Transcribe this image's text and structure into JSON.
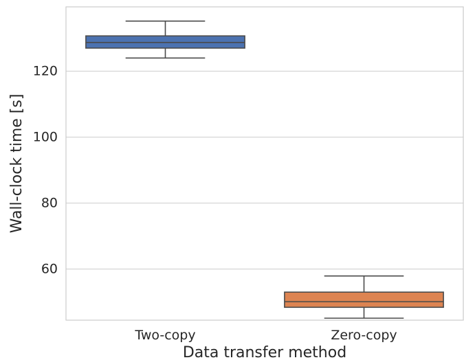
{
  "chart_data": {
    "type": "box",
    "title": "",
    "xlabel": "Data transfer method",
    "ylabel": "Wall-clock time [s]",
    "categories": [
      "Two-copy",
      "Zero-copy"
    ],
    "ylim": [
      44.5,
      139.5
    ],
    "yticks": [
      60,
      80,
      100,
      120
    ],
    "grid": true,
    "series": [
      {
        "category": "Two-copy",
        "whisker_low": 124,
        "q1": 127,
        "median": 128.7,
        "q3": 130.7,
        "whisker_high": 135.2,
        "color": "#4c72b0"
      },
      {
        "category": "Zero-copy",
        "whisker_low": 45.1,
        "q1": 48.4,
        "median": 50.1,
        "q3": 53.0,
        "whisker_high": 57.9,
        "color": "#dd8452"
      }
    ]
  }
}
